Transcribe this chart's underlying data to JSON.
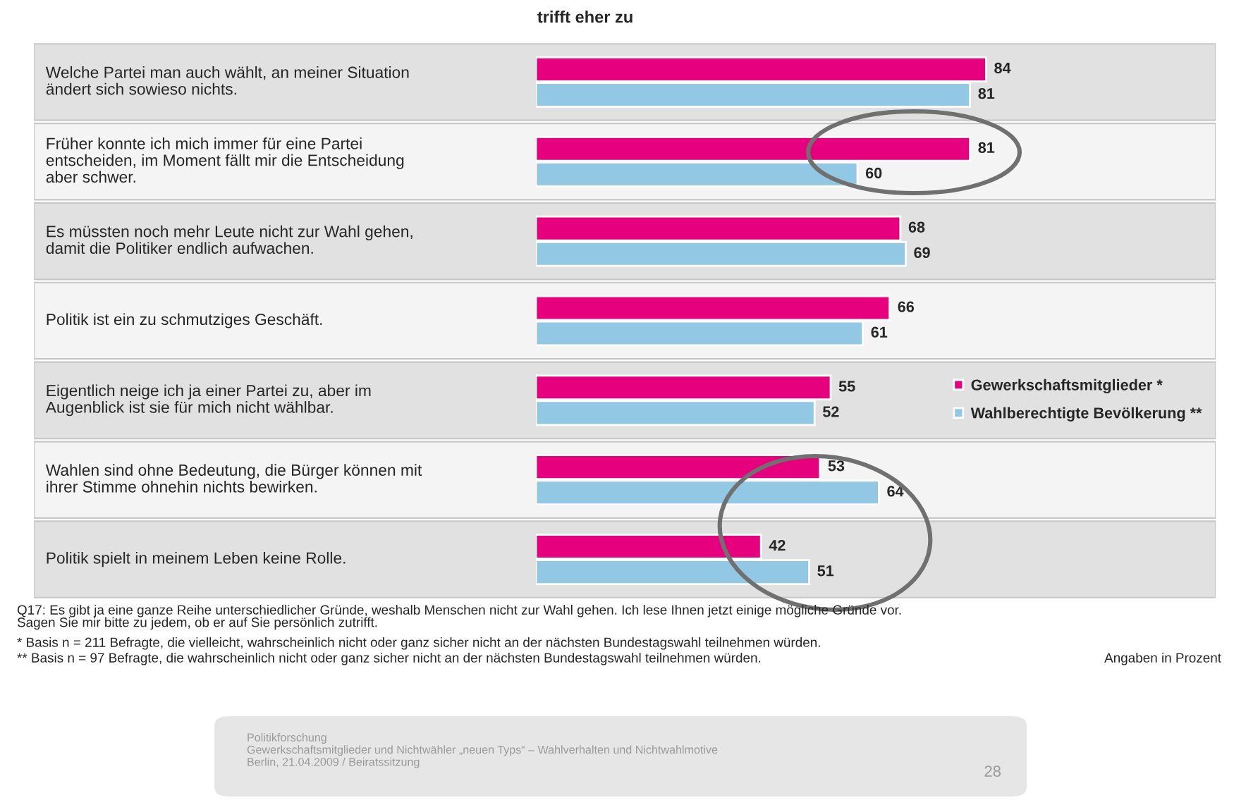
{
  "chart_data": {
    "type": "bar",
    "orientation": "horizontal",
    "title": "trifft eher zu",
    "categories": [
      "Welche Partei man auch wählt, an meiner Situation\nändert sich sowieso nichts.",
      "Früher konnte ich mich immer für eine Partei\nentscheiden, im Moment fällt mir die Entscheidung\naber schwer.",
      "Es müssten noch mehr Leute nicht zur Wahl gehen,\ndamit die Politiker endlich aufwachen.",
      "Politik ist ein zu schmutziges Geschäft.",
      "Eigentlich neige ich ja einer Partei zu, aber im\nAugenblick ist sie für mich nicht wählbar.",
      "Wahlen sind ohne Bedeutung, die Bürger können mit\nihrer Stimme ohnehin nichts bewirken.",
      "Politik spielt in meinem Leben keine Rolle."
    ],
    "series": [
      {
        "name": "Gewerkschaftsmitglieder *",
        "color": "#e6007e",
        "values": [
          84,
          81,
          68,
          66,
          55,
          53,
          42
        ]
      },
      {
        "name": "Wahlberechtigte Bevölkerung **",
        "color": "#93c8e4",
        "values": [
          81,
          60,
          69,
          61,
          52,
          64,
          51
        ]
      }
    ],
    "data_labels": true,
    "legend": "right",
    "annotations": [
      "Q17: Es gibt ja eine ganze Reihe unterschiedlicher Gründe, weshalb Menschen nicht zur Wahl gehen. Ich lese Ihnen jetzt einige mögliche Gründe vor.\nSagen Sie mir bitte zu jedem, ob er auf Sie persönlich zutrifft.",
      "* Basis n = 211 Befragte, die vielleicht, wahrscheinlich nicht oder ganz sicher nicht an der nächsten Bundestagswahl teilnehmen würden.",
      "** Basis n = 97 Befragte, die wahrscheinlich nicht oder ganz sicher nicht an der nächsten Bundestagswahl teilnehmen würden.",
      "Angaben in Prozent",
      "Politikforschung\nGewerkschaftsmitglieder und Nichtwähler „neuen Typs“ – Wahlverhalten und Nichtwahlmotive\nBerlin, 21.04.2009 / Beiratssitzung",
      "28"
    ]
  }
}
